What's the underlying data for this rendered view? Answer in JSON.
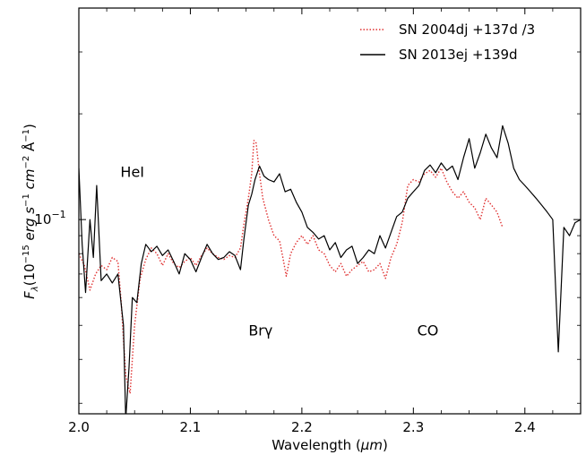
{
  "chart_data": {
    "type": "line",
    "title": "",
    "xlabel": "Wavelength (μm)",
    "ylabel": "F_λ(10^-15 erg s^-1 cm^-2 Å^-1)",
    "xlim": [
      2.0,
      2.45
    ],
    "ylim": [
      0.028,
      0.4
    ],
    "yscale": "log",
    "grid": false,
    "legend": "top-right",
    "x_ticks": [
      {
        "value": 2.0,
        "label": "2.0"
      },
      {
        "value": 2.1,
        "label": "2.1"
      },
      {
        "value": 2.2,
        "label": "2.2"
      },
      {
        "value": 2.3,
        "label": "2.3"
      },
      {
        "value": 2.4,
        "label": "2.4"
      }
    ],
    "y_tick_labels": [
      {
        "value": 0.1,
        "label": "10^-1"
      }
    ],
    "annotations": [
      {
        "text": "HeI",
        "x": 2.048,
        "y": 0.137
      },
      {
        "text": "Brγ",
        "x": 2.163,
        "y": 0.0485
      },
      {
        "text": "CO",
        "x": 2.313,
        "y": 0.0485
      }
    ],
    "series": [
      {
        "name": "SN 2004dj +137d /3",
        "color": "#e03030",
        "style": "dotted",
        "points": [
          [
            2.0,
            0.08
          ],
          [
            2.005,
            0.074
          ],
          [
            2.01,
            0.063
          ],
          [
            2.015,
            0.07
          ],
          [
            2.02,
            0.074
          ],
          [
            2.025,
            0.072
          ],
          [
            2.03,
            0.078
          ],
          [
            2.035,
            0.076
          ],
          [
            2.038,
            0.058
          ],
          [
            2.042,
            0.036
          ],
          [
            2.046,
            0.032
          ],
          [
            2.05,
            0.05
          ],
          [
            2.055,
            0.068
          ],
          [
            2.06,
            0.077
          ],
          [
            2.065,
            0.083
          ],
          [
            2.07,
            0.08
          ],
          [
            2.075,
            0.074
          ],
          [
            2.08,
            0.08
          ],
          [
            2.085,
            0.075
          ],
          [
            2.09,
            0.073
          ],
          [
            2.095,
            0.076
          ],
          [
            2.1,
            0.078
          ],
          [
            2.105,
            0.074
          ],
          [
            2.11,
            0.079
          ],
          [
            2.115,
            0.083
          ],
          [
            2.12,
            0.08
          ],
          [
            2.125,
            0.078
          ],
          [
            2.13,
            0.077
          ],
          [
            2.135,
            0.079
          ],
          [
            2.14,
            0.078
          ],
          [
            2.145,
            0.083
          ],
          [
            2.148,
            0.097
          ],
          [
            2.152,
            0.115
          ],
          [
            2.155,
            0.135
          ],
          [
            2.157,
            0.168
          ],
          [
            2.159,
            0.165
          ],
          [
            2.162,
            0.135
          ],
          [
            2.165,
            0.115
          ],
          [
            2.17,
            0.1
          ],
          [
            2.175,
            0.09
          ],
          [
            2.18,
            0.087
          ],
          [
            2.183,
            0.078
          ],
          [
            2.186,
            0.069
          ],
          [
            2.19,
            0.08
          ],
          [
            2.195,
            0.086
          ],
          [
            2.2,
            0.09
          ],
          [
            2.205,
            0.085
          ],
          [
            2.21,
            0.09
          ],
          [
            2.215,
            0.082
          ],
          [
            2.22,
            0.08
          ],
          [
            2.225,
            0.074
          ],
          [
            2.23,
            0.071
          ],
          [
            2.235,
            0.075
          ],
          [
            2.24,
            0.069
          ],
          [
            2.245,
            0.072
          ],
          [
            2.25,
            0.074
          ],
          [
            2.255,
            0.076
          ],
          [
            2.26,
            0.071
          ],
          [
            2.265,
            0.072
          ],
          [
            2.27,
            0.075
          ],
          [
            2.275,
            0.068
          ],
          [
            2.28,
            0.078
          ],
          [
            2.285,
            0.085
          ],
          [
            2.29,
            0.098
          ],
          [
            2.295,
            0.125
          ],
          [
            2.3,
            0.13
          ],
          [
            2.305,
            0.128
          ],
          [
            2.31,
            0.135
          ],
          [
            2.315,
            0.138
          ],
          [
            2.32,
            0.132
          ],
          [
            2.325,
            0.14
          ],
          [
            2.33,
            0.128
          ],
          [
            2.335,
            0.12
          ],
          [
            2.34,
            0.115
          ],
          [
            2.345,
            0.12
          ],
          [
            2.35,
            0.112
          ],
          [
            2.355,
            0.108
          ],
          [
            2.36,
            0.1
          ],
          [
            2.365,
            0.115
          ],
          [
            2.37,
            0.11
          ],
          [
            2.375,
            0.105
          ],
          [
            2.38,
            0.095
          ]
        ]
      },
      {
        "name": "SN 2013ej +139d",
        "color": "#000000",
        "style": "solid",
        "points": [
          [
            2.0,
            0.14
          ],
          [
            2.003,
            0.085
          ],
          [
            2.006,
            0.062
          ],
          [
            2.01,
            0.1
          ],
          [
            2.013,
            0.078
          ],
          [
            2.016,
            0.125
          ],
          [
            2.02,
            0.067
          ],
          [
            2.025,
            0.07
          ],
          [
            2.03,
            0.066
          ],
          [
            2.035,
            0.07
          ],
          [
            2.04,
            0.05
          ],
          [
            2.042,
            0.027
          ],
          [
            2.045,
            0.038
          ],
          [
            2.048,
            0.06
          ],
          [
            2.052,
            0.058
          ],
          [
            2.056,
            0.075
          ],
          [
            2.06,
            0.085
          ],
          [
            2.065,
            0.081
          ],
          [
            2.07,
            0.084
          ],
          [
            2.075,
            0.079
          ],
          [
            2.08,
            0.082
          ],
          [
            2.085,
            0.076
          ],
          [
            2.09,
            0.07
          ],
          [
            2.095,
            0.08
          ],
          [
            2.1,
            0.077
          ],
          [
            2.105,
            0.071
          ],
          [
            2.11,
            0.078
          ],
          [
            2.115,
            0.085
          ],
          [
            2.12,
            0.08
          ],
          [
            2.125,
            0.077
          ],
          [
            2.13,
            0.078
          ],
          [
            2.135,
            0.081
          ],
          [
            2.14,
            0.079
          ],
          [
            2.145,
            0.072
          ],
          [
            2.148,
            0.088
          ],
          [
            2.152,
            0.11
          ],
          [
            2.155,
            0.118
          ],
          [
            2.158,
            0.13
          ],
          [
            2.162,
            0.142
          ],
          [
            2.166,
            0.133
          ],
          [
            2.17,
            0.13
          ],
          [
            2.175,
            0.128
          ],
          [
            2.18,
            0.135
          ],
          [
            2.185,
            0.12
          ],
          [
            2.19,
            0.122
          ],
          [
            2.195,
            0.112
          ],
          [
            2.2,
            0.105
          ],
          [
            2.205,
            0.095
          ],
          [
            2.21,
            0.092
          ],
          [
            2.215,
            0.088
          ],
          [
            2.22,
            0.09
          ],
          [
            2.225,
            0.082
          ],
          [
            2.23,
            0.086
          ],
          [
            2.235,
            0.078
          ],
          [
            2.24,
            0.082
          ],
          [
            2.245,
            0.084
          ],
          [
            2.25,
            0.075
          ],
          [
            2.255,
            0.078
          ],
          [
            2.26,
            0.082
          ],
          [
            2.265,
            0.08
          ],
          [
            2.27,
            0.09
          ],
          [
            2.275,
            0.083
          ],
          [
            2.28,
            0.092
          ],
          [
            2.285,
            0.102
          ],
          [
            2.29,
            0.105
          ],
          [
            2.295,
            0.115
          ],
          [
            2.3,
            0.12
          ],
          [
            2.305,
            0.125
          ],
          [
            2.31,
            0.138
          ],
          [
            2.315,
            0.143
          ],
          [
            2.32,
            0.136
          ],
          [
            2.325,
            0.145
          ],
          [
            2.33,
            0.138
          ],
          [
            2.335,
            0.142
          ],
          [
            2.34,
            0.13
          ],
          [
            2.345,
            0.15
          ],
          [
            2.35,
            0.17
          ],
          [
            2.355,
            0.14
          ],
          [
            2.36,
            0.155
          ],
          [
            2.365,
            0.175
          ],
          [
            2.37,
            0.16
          ],
          [
            2.375,
            0.15
          ],
          [
            2.38,
            0.185
          ],
          [
            2.385,
            0.165
          ],
          [
            2.39,
            0.14
          ],
          [
            2.395,
            0.13
          ],
          [
            2.4,
            0.125
          ],
          [
            2.405,
            0.12
          ],
          [
            2.41,
            0.115
          ],
          [
            2.415,
            0.11
          ],
          [
            2.42,
            0.105
          ],
          [
            2.425,
            0.1
          ],
          [
            2.43,
            0.042
          ],
          [
            2.435,
            0.095
          ],
          [
            2.44,
            0.09
          ],
          [
            2.445,
            0.098
          ],
          [
            2.45,
            0.1
          ]
        ]
      }
    ]
  }
}
